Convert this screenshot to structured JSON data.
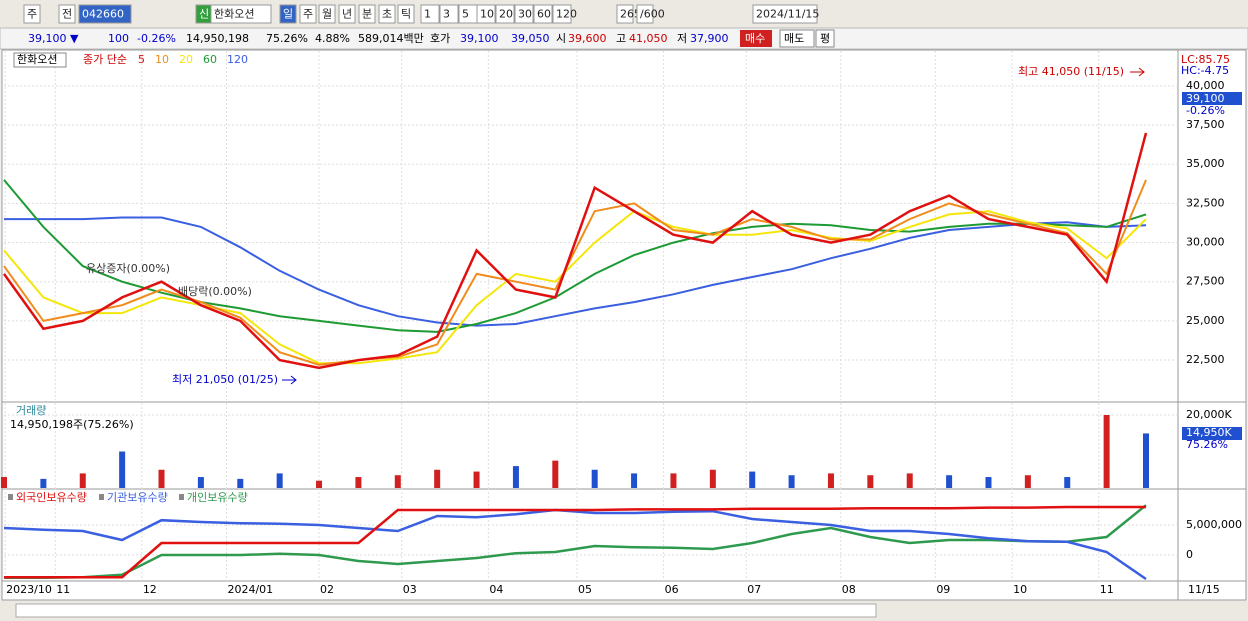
{
  "toolbar": {
    "items": [
      "주",
      "전",
      "042660",
      "신",
      "한화오션",
      "일",
      "주",
      "월",
      "년",
      "분",
      "초",
      "틱",
      "1",
      "3",
      "5",
      "10",
      "20",
      "30",
      "60",
      "120",
      "265",
      "/600",
      "2024/11/15"
    ]
  },
  "quote": {
    "price": "39,100 ▼",
    "change": "100",
    "rate": "-0.26%",
    "volume": "14,950,198",
    "vol_rate": "75.26%",
    "turnover": "4.88%",
    "amount": "589,014백만",
    "ask_label": "호가",
    "ask": "39,100",
    "bid": "39,050",
    "open_label": "시",
    "open": "39,600",
    "high_label": "고",
    "high": "41,050",
    "low_label": "저",
    "low": "37,900",
    "buy": "매수",
    "sell": "매도",
    "avg": "평"
  },
  "chart_data": [
    {
      "type": "line",
      "legend_name": "한화오션",
      "legend_prefix": "종가 단순",
      "ylim": [
        19950,
        42100
      ],
      "yticks": [
        {
          "value": 22500,
          "label": "22,500"
        },
        {
          "value": 25000,
          "label": "25,000"
        },
        {
          "value": 27500,
          "label": "27,500"
        },
        {
          "value": 30000,
          "label": "30,000"
        },
        {
          "value": 32500,
          "label": "32,500"
        },
        {
          "value": 35000,
          "label": "35,000"
        },
        {
          "value": 37500,
          "label": "37,500"
        },
        {
          "value": 40000,
          "label": "40,000"
        }
      ],
      "series": [
        {
          "name": "5",
          "color": "#e01010",
          "values": [
            28000,
            24500,
            25000,
            26500,
            27500,
            26000,
            25000,
            22500,
            22000,
            22500,
            22800,
            24000,
            29500,
            27000,
            26500,
            33500,
            32000,
            30500,
            30000,
            32000,
            30500,
            30000,
            30500,
            32000,
            33000,
            31500,
            31000,
            30500,
            27500,
            37000
          ]
        },
        {
          "name": "10",
          "color": "#f08c1c",
          "values": [
            28500,
            25000,
            25500,
            26000,
            27000,
            26200,
            25200,
            23000,
            22200,
            22500,
            22700,
            23500,
            28000,
            27500,
            27000,
            32000,
            32500,
            30800,
            30500,
            31500,
            31000,
            30200,
            30200,
            31500,
            32500,
            31800,
            31200,
            30600,
            28000,
            34000
          ]
        },
        {
          "name": "20",
          "color": "#f5e60a",
          "values": [
            29500,
            26500,
            25500,
            25500,
            26500,
            26000,
            25500,
            23500,
            22300,
            22300,
            22600,
            23000,
            26000,
            28000,
            27500,
            30000,
            32000,
            31000,
            30500,
            30500,
            30800,
            30300,
            30100,
            31000,
            31800,
            32000,
            31300,
            30900,
            29000,
            31500
          ]
        },
        {
          "name": "60",
          "color": "#1e9a34",
          "values": [
            34000,
            31000,
            28500,
            27500,
            26800,
            26200,
            25800,
            25300,
            25000,
            24700,
            24400,
            24300,
            24800,
            25500,
            26500,
            28000,
            29200,
            30000,
            30600,
            31000,
            31200,
            31100,
            30800,
            30700,
            31000,
            31200,
            31200,
            31100,
            31000,
            31800
          ]
        },
        {
          "name": "120",
          "color": "#3a5fe0",
          "values": [
            31500,
            31500,
            31500,
            31600,
            31600,
            31000,
            29700,
            28200,
            27000,
            26000,
            25300,
            24900,
            24700,
            24800,
            25300,
            25800,
            26200,
            26700,
            27300,
            27800,
            28300,
            29000,
            29600,
            30300,
            30800,
            31000,
            31200,
            31300,
            31000,
            31100
          ]
        }
      ],
      "annotations": [
        "최고 41,050 (11/15)",
        "최저 21,050 (01/25)",
        "유상증자(0.00%)",
        "배당락(0.00%)"
      ],
      "right_labels": [
        "LC:85.75",
        "HC:-4.75",
        "39,100",
        "-0.26%"
      ]
    },
    {
      "type": "bar",
      "title": "거래량",
      "subtitle": "14,950,198주(75.26%)",
      "ylim": [
        0,
        22740
      ],
      "yticks": [
        {
          "value": 20000,
          "label": "20,000K"
        }
      ],
      "current_label": "14,950K",
      "current_rate": "75.26%",
      "values": [
        3000,
        2500,
        4000,
        10000,
        5000,
        3000,
        2500,
        4000,
        2000,
        3000,
        3500,
        5000,
        4500,
        6000,
        7500,
        5000,
        4000,
        4000,
        5000,
        4500,
        3500,
        4000,
        3500,
        4000,
        3500,
        3000,
        3500,
        3000,
        20000,
        14950
      ],
      "colors": [
        "#d02020",
        "#2050d0",
        "#d02020",
        "#2050d0",
        "#d02020",
        "#2050d0",
        "#2050d0",
        "#2050d0",
        "#d02020",
        "#d02020",
        "#d02020",
        "#d02020",
        "#d02020",
        "#2050d0",
        "#d02020",
        "#2050d0",
        "#2050d0",
        "#d02020",
        "#d02020",
        "#2050d0",
        "#2050d0",
        "#d02020",
        "#d02020",
        "#d02020",
        "#2050d0",
        "#2050d0",
        "#d02020",
        "#2050d0",
        "#d02020",
        "#2050d0"
      ]
    },
    {
      "type": "line",
      "ylim": [
        -4170000,
        10830000
      ],
      "yticks": [
        0,
        {
          "value": 5000000,
          "label": "5,000,000"
        }
      ],
      "xlim": [
        0,
        29
      ],
      "xticks": [
        {
          "value": 0.03,
          "label": "2023/10"
        },
        {
          "value": 1.3,
          "label": "11"
        },
        {
          "value": 3.5,
          "label": "12"
        },
        {
          "value": 5.65,
          "label": "2024/01"
        },
        {
          "value": 8.0,
          "label": "02"
        },
        {
          "value": 10.1,
          "label": "03"
        },
        {
          "value": 12.3,
          "label": "04"
        },
        {
          "value": 14.55,
          "label": "05"
        },
        {
          "value": 16.75,
          "label": "06"
        },
        {
          "value": 18.85,
          "label": "07"
        },
        {
          "value": 21.25,
          "label": "08"
        },
        {
          "value": 23.65,
          "label": "09"
        },
        {
          "value": 25.6,
          "label": "10"
        },
        {
          "value": 27.8,
          "label": "11"
        }
      ],
      "last_date": "11/15",
      "series": [
        {
          "name": "외국인보유수량",
          "color": "#e01010",
          "values": [
            -3700000,
            -3700000,
            -3700000,
            -3700000,
            2000000,
            2000000,
            2000000,
            2000000,
            2000000,
            2000000,
            7500000,
            7500000,
            7500000,
            7500000,
            7500000,
            7500000,
            7600000,
            7600000,
            7600000,
            7700000,
            7700000,
            7700000,
            7800000,
            7800000,
            7800000,
            7900000,
            7900000,
            8000000,
            8000000,
            8000000
          ]
        },
        {
          "name": "기관보유수량",
          "color": "#3a5fe0",
          "values": [
            4500000,
            4200000,
            4000000,
            2500000,
            5800000,
            5500000,
            5300000,
            5200000,
            5000000,
            4500000,
            4000000,
            6500000,
            6300000,
            6800000,
            7500000,
            7000000,
            7000000,
            7200000,
            7300000,
            6000000,
            5500000,
            5000000,
            4000000,
            4000000,
            3500000,
            2800000,
            2300000,
            2200000,
            500000,
            -4000000
          ]
        },
        {
          "name": "개인보유수량",
          "color": "#2e9a4e",
          "values": [
            -3800000,
            -3800000,
            -3700000,
            -3300000,
            0,
            0,
            0,
            200000,
            0,
            -1000000,
            -1500000,
            -1000000,
            -500000,
            300000,
            500000,
            1500000,
            1300000,
            1200000,
            1000000,
            2000000,
            3500000,
            4500000,
            3000000,
            2000000,
            2500000,
            2500000,
            2300000,
            2200000,
            3000000,
            8300000
          ]
        }
      ]
    }
  ]
}
